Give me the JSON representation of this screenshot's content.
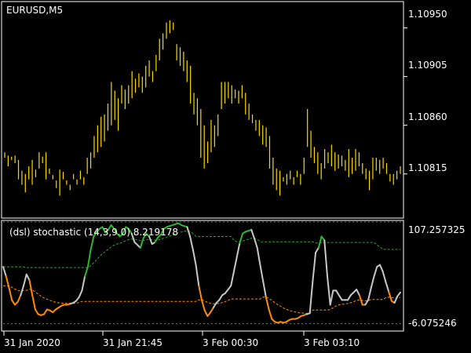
{
  "window": {
    "symbol_label": "EURUSD,M5",
    "indicator_label": "(dsl) stochastic (14,3,9.0) 8.219178"
  },
  "colors": {
    "background": "#000000",
    "frame": "#ffffff",
    "price_bars": "#ffd700",
    "stoch_neutral": "#c8c8c8",
    "stoch_up": "#2db82d",
    "stoch_down": "#ff8c00",
    "upper_level": "#22aa22",
    "lower_level": "#ff8c00",
    "bound_line": "#777777"
  },
  "price_axis": {
    "ticks": [
      "1.10950",
      "1.10905",
      "1.10860",
      "1.10815"
    ]
  },
  "indicator_axis": {
    "top_label": "107.257325",
    "bottom_label": "-6.075246"
  },
  "time_axis": {
    "ticks": [
      "31 Jan 2020",
      "31 Jan 21:45",
      "3 Feb 00:30",
      "3 Feb 03:10"
    ]
  },
  "chart_data": [
    {
      "type": "ohlc",
      "title": "EURUSD,M5",
      "ylim": [
        1.1078,
        1.1097
      ],
      "bars": [
        [
          1.1083,
          1.10835
        ],
        [
          1.10822,
          1.10832
        ],
        [
          1.10828,
          1.10831
        ],
        [
          1.10825,
          1.10832
        ],
        [
          1.1081,
          1.10828
        ],
        [
          1.10805,
          1.10818
        ],
        [
          1.10798,
          1.10815
        ],
        [
          1.1081,
          1.10822
        ],
        [
          1.10805,
          1.10828
        ],
        [
          1.10812,
          1.10819
        ],
        [
          1.1082,
          1.10835
        ],
        [
          1.10825,
          1.10831
        ],
        [
          1.1081,
          1.10835
        ],
        [
          1.10815,
          1.1082
        ],
        [
          1.1081,
          1.10814
        ],
        [
          1.10802,
          1.10809
        ],
        [
          1.10795,
          1.10819
        ],
        [
          1.1081,
          1.10817
        ],
        [
          1.10805,
          1.10809
        ],
        [
          1.108,
          1.10805
        ],
        [
          1.1081,
          1.10815
        ],
        [
          1.10805,
          1.1081
        ],
        [
          1.1081,
          1.10818
        ],
        [
          1.10805,
          1.10812
        ],
        [
          1.10815,
          1.1083
        ],
        [
          1.1082,
          1.10835
        ],
        [
          1.1083,
          1.1085
        ],
        [
          1.10835,
          1.1086
        ],
        [
          1.1084,
          1.10868
        ],
        [
          1.10845,
          1.1087
        ],
        [
          1.10855,
          1.1088
        ],
        [
          1.1086,
          1.109
        ],
        [
          1.10865,
          1.10892
        ],
        [
          1.10855,
          1.10885
        ],
        [
          1.1088,
          1.10897
        ],
        [
          1.10875,
          1.10893
        ],
        [
          1.1088,
          1.10897
        ],
        [
          1.10885,
          1.1091
        ],
        [
          1.1089,
          1.10903
        ],
        [
          1.10895,
          1.10908
        ],
        [
          1.1089,
          1.10905
        ],
        [
          1.10895,
          1.10915
        ],
        [
          1.10905,
          1.1092
        ],
        [
          1.109,
          1.1091
        ],
        [
          1.1091,
          1.10925
        ],
        [
          1.1092,
          1.1094
        ],
        [
          1.1093,
          1.10945
        ],
        [
          1.1094,
          1.10955
        ],
        [
          1.10945,
          1.10957
        ],
        [
          1.10948,
          1.10955
        ],
        [
          1.1092,
          1.10935
        ],
        [
          1.10915,
          1.10932
        ],
        [
          1.1091,
          1.10928
        ],
        [
          1.109,
          1.1092
        ],
        [
          1.1088,
          1.10915
        ],
        [
          1.1087,
          1.1089
        ],
        [
          1.1086,
          1.10885
        ],
        [
          1.1083,
          1.10875
        ],
        [
          1.1082,
          1.1086
        ],
        [
          1.10825,
          1.10845
        ],
        [
          1.10835,
          1.10865
        ],
        [
          1.1084,
          1.1086
        ],
        [
          1.1085,
          1.1087
        ],
        [
          1.10875,
          1.109
        ],
        [
          1.1088,
          1.109
        ],
        [
          1.10885,
          1.109
        ],
        [
          1.1088,
          1.10897
        ],
        [
          1.10885,
          1.10893
        ],
        [
          1.1088,
          1.10892
        ],
        [
          1.10885,
          1.10897
        ],
        [
          1.1087,
          1.1089
        ],
        [
          1.10865,
          1.1088
        ],
        [
          1.10862,
          1.1087
        ],
        [
          1.10855,
          1.10865
        ],
        [
          1.1085,
          1.10865
        ],
        [
          1.10842,
          1.1086
        ],
        [
          1.1084,
          1.10858
        ],
        [
          1.1082,
          1.1085
        ],
        [
          1.10805,
          1.1083
        ],
        [
          1.108,
          1.1082
        ],
        [
          1.10795,
          1.10818
        ],
        [
          1.10808,
          1.10812
        ],
        [
          1.10805,
          1.10815
        ],
        [
          1.1081,
          1.10818
        ],
        [
          1.10805,
          1.10812
        ],
        [
          1.10812,
          1.10818
        ],
        [
          1.10805,
          1.10815
        ],
        [
          1.10815,
          1.1083
        ],
        [
          1.1084,
          1.10875
        ],
        [
          1.1083,
          1.10855
        ],
        [
          1.10825,
          1.1084
        ],
        [
          1.10815,
          1.10835
        ],
        [
          1.1081,
          1.10825
        ],
        [
          1.1082,
          1.10838
        ],
        [
          1.10825,
          1.10835
        ],
        [
          1.10822,
          1.10842
        ],
        [
          1.10818,
          1.10835
        ],
        [
          1.1082,
          1.10833
        ],
        [
          1.10822,
          1.10832
        ],
        [
          1.10818,
          1.10828
        ],
        [
          1.10812,
          1.10838
        ],
        [
          1.10815,
          1.1083
        ],
        [
          1.10818,
          1.10838
        ],
        [
          1.10822,
          1.10835
        ],
        [
          1.10815,
          1.10825
        ],
        [
          1.1081,
          1.1082
        ],
        [
          1.108,
          1.10818
        ],
        [
          1.1081,
          1.1083
        ],
        [
          1.10818,
          1.1083
        ],
        [
          1.10815,
          1.10828
        ],
        [
          1.1082,
          1.1083
        ],
        [
          1.10815,
          1.10825
        ],
        [
          1.10808,
          1.10815
        ],
        [
          1.10805,
          1.10815
        ],
        [
          1.1081,
          1.10818
        ],
        [
          1.10815,
          1.10822
        ]
      ]
    },
    {
      "type": "line",
      "title": "(dsl) stochastic (14,3,9.0) 8.219178",
      "ylim": [
        -6.075246,
        107.257325
      ],
      "series": [
        {
          "values": [
            60,
            50,
            38,
            25,
            20,
            23,
            30,
            40,
            52,
            46,
            30,
            15,
            10,
            9,
            10,
            15,
            14,
            12,
            15,
            17,
            19,
            20,
            20,
            21,
            22,
            24,
            28,
            35,
            50,
            60,
            78,
            92,
            97,
            100,
            102,
            96,
            99,
            104,
            100,
            95,
            92,
            95,
            102,
            100,
            95,
            86,
            83,
            80,
            90,
            95,
            92,
            84,
            86,
            91,
            94,
            100,
            102,
            103,
            104,
            105,
            106,
            104,
            103,
            102,
            92,
            78,
            62,
            40,
            25,
            14,
            8,
            12,
            17,
            22,
            25,
            30,
            32,
            36,
            40,
            55,
            70,
            85,
            95,
            97,
            98,
            99,
            90,
            80,
            62,
            45,
            28,
            15,
            5,
            2,
            1,
            2,
            1,
            2,
            4,
            5,
            5,
            6,
            8,
            9,
            10,
            11,
            45,
            75,
            80,
            92,
            88,
            50,
            20,
            35,
            35,
            30,
            25,
            25,
            25,
            30,
            33,
            36,
            30,
            20,
            20,
            25,
            38,
            50,
            60,
            62,
            55,
            44,
            34,
            24,
            22,
            29,
            33
          ]
        }
      ]
    }
  ]
}
